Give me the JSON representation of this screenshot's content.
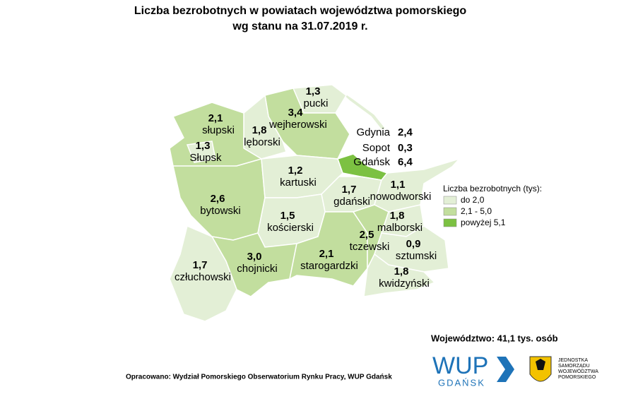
{
  "header": {
    "title": "Liczba bezrobotnych w powiatach województwa pomorskiego",
    "subtitle": "wg stanu na 31.07.2019 r."
  },
  "regions": [
    {
      "name": "pucki",
      "value": "1,3"
    },
    {
      "name": "wejherowski",
      "value": "3,4"
    },
    {
      "name": "lęborski",
      "value": "1,8"
    },
    {
      "name": "słupski",
      "value": "2,1"
    },
    {
      "name": "Słupsk",
      "value": "1,3"
    },
    {
      "name": "bytowski",
      "value": "2,6"
    },
    {
      "name": "kartuski",
      "value": "1,2"
    },
    {
      "name": "gdański",
      "value": "1,7"
    },
    {
      "name": "nowodworski",
      "value": "1,1"
    },
    {
      "name": "kościerski",
      "value": "1,5"
    },
    {
      "name": "chojnicki",
      "value": "3,0"
    },
    {
      "name": "człuchowski",
      "value": "1,7"
    },
    {
      "name": "starogardzki",
      "value": "2,1"
    },
    {
      "name": "tczewski",
      "value": "2,5"
    },
    {
      "name": "malborski",
      "value": "1,8"
    },
    {
      "name": "sztumski",
      "value": "0,9"
    },
    {
      "name": "kwidzyński",
      "value": "1,8"
    }
  ],
  "cities": [
    {
      "name": "Gdynia",
      "value": "2,4"
    },
    {
      "name": "Sopot",
      "value": "0,3"
    },
    {
      "name": "Gdańsk",
      "value": "6,4"
    }
  ],
  "legend": {
    "title": "Liczba bezrobotnych (tys):",
    "items": [
      {
        "label": "do 2,0",
        "color": "#e3efd6"
      },
      {
        "label": "2,1 - 5,0",
        "color": "#c2de9e"
      },
      {
        "label": "powyżej 5,1",
        "color": "#7cc142"
      }
    ]
  },
  "total": "Województwo: 41,1 tys. osób",
  "footer": {
    "source": "Opracowano: Wydział Pomorskiego Obserwatorium Rynku Pracy, WUP Gdańsk",
    "logo_main": "WUP",
    "logo_sub": "GDAŃSK",
    "logo2": [
      "JEDNOSTKA",
      "SAMORZĄDU",
      "WOJEWÓDZTWA",
      "POMORSKIEGO"
    ]
  }
}
